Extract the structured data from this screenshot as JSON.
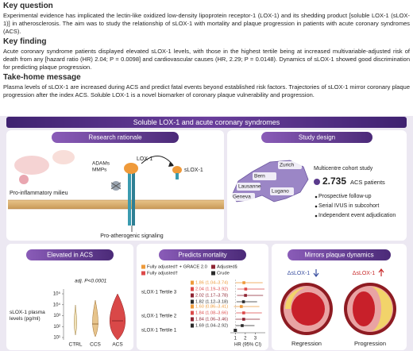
{
  "sections": [
    {
      "heading": "Key question",
      "text": "Experimental evidence has implicated the lectin-like oxidized low-density lipoprotein receptor-1 (LOX-1) and its shedding product [soluble LOX-1 (sLOX-1)] in atherosclerosis. The aim was to study the relationship of sLOX-1 with mortality and plaque progression in patients with acute coronary syndromes (ACS)."
    },
    {
      "heading": "Key finding",
      "text": "Acute coronary syndrome patients displayed elevated sLOX-1 levels, with those in the highest tertile being at increased multivariable-adjusted risk of death from any [hazard ratio (HR) 2.04; P = 0.0098] and cardiovascular causes (HR, 2.29; P = 0.0148). Dynamics of sLOX-1 showed good discrimination for predicting plaque progression."
    },
    {
      "heading": "Take-home message",
      "text": "Plasma levels of sLOX-1 are increased during ACS and predict fatal events beyond established risk factors. Trajectories of sLOX-1 mirror coronary plaque progression after the index ACS. Soluble LOX-1 is a novel biomarker of coronary plaque vulnerability and progression."
    }
  ],
  "abstract": {
    "title": "Soluble LOX-1 and acute coronary syndromes",
    "rationale": {
      "title": "Research rationale",
      "adams": "ADAMs",
      "mmps": "MMPs",
      "lox1": "LOX-1",
      "slox1": "sLOX-1",
      "milieu": "Pro-inflammatory milieu",
      "signaling": "Pro-atherogenic signaling"
    },
    "design": {
      "title": "Study design",
      "subtitle": "Multicentre cohort study",
      "count": "2.735",
      "count_label": "ACS patients",
      "bullets": [
        "Prospective follow-up",
        "Serial IVUS in subcohort",
        "Independent event adjudication"
      ],
      "cities": [
        "Zurich",
        "Bern",
        "Lausanne",
        "Geneva",
        "Lugano"
      ]
    },
    "elevated": {
      "title": "Elevated in ACS",
      "y_label": "sLOX-1 plasma levels (pg/ml)",
      "annotation": "adj. P<0.0001",
      "groups": [
        "CTRL",
        "CCS",
        "ACS"
      ],
      "ylim": [
        1,
        5
      ],
      "yticks": [
        {
          "value": 5,
          "label": "10⁵"
        },
        {
          "value": 4,
          "label": "10⁴"
        },
        {
          "value": 3,
          "label": "10³"
        },
        {
          "value": 2,
          "label": "10²"
        },
        {
          "value": 1,
          "label": "10¹"
        }
      ]
    },
    "mortality": {
      "title": "Predicts mortality",
      "type": "forest",
      "categories": [
        "sLOX-1 Tertile 3",
        "sLOX-1 Tertile 2",
        "sLOX-1 Tertile 1"
      ],
      "series": [
        {
          "name": "Fully adjusted† + GRACE 2.0",
          "color": "#ee9a3a",
          "hr": [
            1.86,
            1.6,
            null
          ],
          "lo": [
            1.04,
            0.86,
            null
          ],
          "hi": [
            3.74,
            3.41,
            null
          ],
          "value_labels": [
            "1.86 (1.04–3.74)",
            "1.60 (0.86–3.41)",
            null
          ]
        },
        {
          "name": "Fully adjusted†",
          "color": "#dd4a4a",
          "hr": [
            2.04,
            1.84,
            null
          ],
          "lo": [
            1.19,
            1.08,
            null
          ],
          "hi": [
            3.92,
            3.66,
            null
          ],
          "value_labels": [
            "2.04 (1.19–3.92)",
            "1.84 (1.08–3.66)",
            null
          ]
        },
        {
          "name": "Adjusted§",
          "color": "#8e2433",
          "hr": [
            2.02,
            1.84,
            null
          ],
          "lo": [
            1.17,
            1.06,
            null
          ],
          "hi": [
            3.78,
            3.46,
            null
          ],
          "value_labels": [
            "2.02 (1.17–3.78)",
            "1.84 (1.06–3.46)",
            null
          ]
        },
        {
          "name": "Crude",
          "color": "#2b2b2b",
          "hr": [
            1.82,
            1.69,
            null
          ],
          "lo": [
            1.12,
            1.04,
            null
          ],
          "hi": [
            3.18,
            2.92,
            null
          ],
          "value_labels": [
            "1.82 (1.12–3.18)",
            "1.69 (1.04–2.92)",
            null
          ]
        }
      ],
      "xlim": [
        0.5,
        4
      ],
      "xticks": [
        1,
        2,
        3
      ],
      "x_label": "HR (95% CI)"
    },
    "plaque": {
      "title": "Mirrors plaque dynamics",
      "left": "ΔsLOX-1",
      "right": "ΔsLOX-1",
      "left_caption": "Regression",
      "right_caption": "Progression"
    }
  }
}
